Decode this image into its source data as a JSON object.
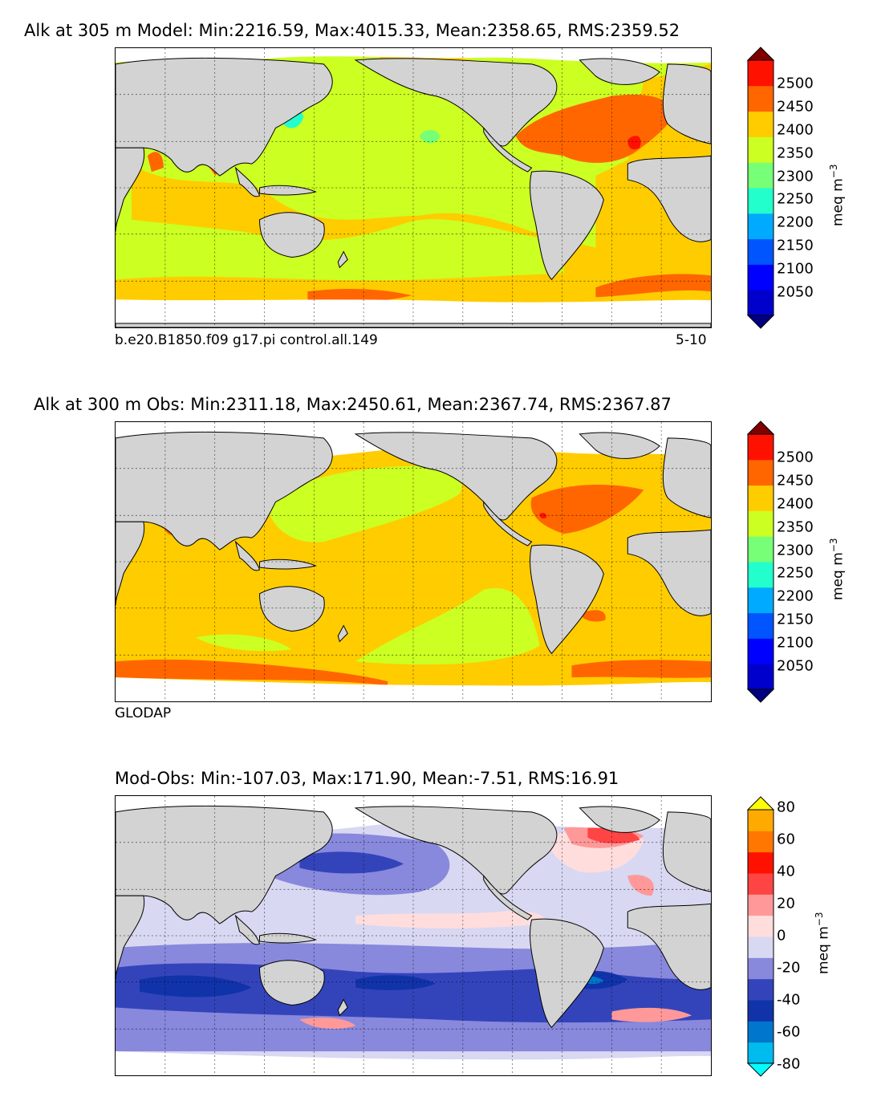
{
  "panels": [
    {
      "title": "Alk at 305 m Model: Min:2216.59, Max:4015.33, Mean:2358.65, RMS:2359.52",
      "footnote_left": "b.e20.B1850.f09 g17.pi control.all.149",
      "footnote_right": "5-10",
      "colorbar": {
        "ticks": [
          "2500",
          "2450",
          "2400",
          "2350",
          "2300",
          "2250",
          "2200",
          "2150",
          "2100",
          "2050"
        ],
        "unit": "meq m",
        "unit_exp": "−3",
        "colors": [
          "#000080",
          "#0000cd",
          "#0000ff",
          "#0055ff",
          "#00aaff",
          "#22ffcc",
          "#77ff77",
          "#ccff22",
          "#ffcc00",
          "#ff6600",
          "#ff1100",
          "#800000"
        ]
      }
    },
    {
      "title": "Alk at 300 m Obs: Min:2311.18, Max:2450.61, Mean:2367.74, RMS:2367.87",
      "footnote_left": "GLODAP",
      "colorbar": {
        "ticks": [
          "2500",
          "2450",
          "2400",
          "2350",
          "2300",
          "2250",
          "2200",
          "2150",
          "2100",
          "2050"
        ],
        "unit": "meq m",
        "unit_exp": "−3",
        "colors": [
          "#000080",
          "#0000cd",
          "#0000ff",
          "#0055ff",
          "#00aaff",
          "#22ffcc",
          "#77ff77",
          "#ccff22",
          "#ffcc00",
          "#ff6600",
          "#ff1100",
          "#800000"
        ]
      }
    },
    {
      "title": "Mod-Obs: Min:-107.03, Max:171.90, Mean:-7.51, RMS:16.91",
      "colorbar": {
        "ticks": [
          "80",
          "60",
          "40",
          "20",
          "0",
          "-20",
          "-40",
          "-60",
          "-80"
        ],
        "unit": "meq m",
        "unit_exp": "−3",
        "colors": [
          "#00ffff",
          "#00bbee",
          "#0077cc",
          "#1133aa",
          "#3344bb",
          "#8888dd",
          "#d8d8f2",
          "#ffdddd",
          "#ff9999",
          "#ff4444",
          "#ff1100",
          "#ff7700",
          "#ffaa00",
          "#ffff00"
        ]
      }
    }
  ],
  "palette": {
    "land": "#d3d3d3",
    "ice": "#ffffff"
  }
}
